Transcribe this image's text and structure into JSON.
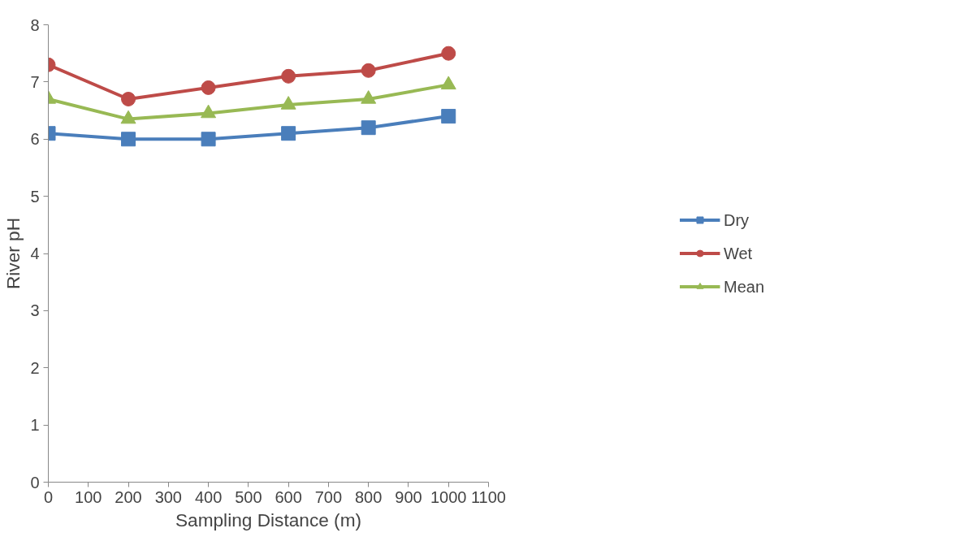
{
  "chart_data": {
    "type": "line",
    "xlabel": "Sampling Distance (m)",
    "ylabel": "River pH",
    "x": [
      0,
      200,
      400,
      600,
      800,
      1000
    ],
    "series": [
      {
        "name": "Dry",
        "color": "#4a7ebb",
        "marker": "square",
        "values": [
          6.1,
          6.0,
          6.0,
          6.1,
          6.2,
          6.4
        ]
      },
      {
        "name": "Wet",
        "color": "#be4b48",
        "marker": "circle",
        "values": [
          7.3,
          6.7,
          6.9,
          7.1,
          7.2,
          7.5
        ]
      },
      {
        "name": "Mean",
        "color": "#98b954",
        "marker": "triangle",
        "values": [
          6.7,
          6.35,
          6.45,
          6.6,
          6.7,
          6.95
        ]
      }
    ],
    "xlim": [
      0,
      1100
    ],
    "xticks": [
      0,
      100,
      200,
      300,
      400,
      500,
      600,
      700,
      800,
      900,
      1000,
      1100
    ],
    "ylim": [
      0,
      8
    ],
    "yticks": [
      0,
      1,
      2,
      3,
      4,
      5,
      6,
      7,
      8
    ],
    "grid": false,
    "legend": "right",
    "line_style": "solid"
  }
}
